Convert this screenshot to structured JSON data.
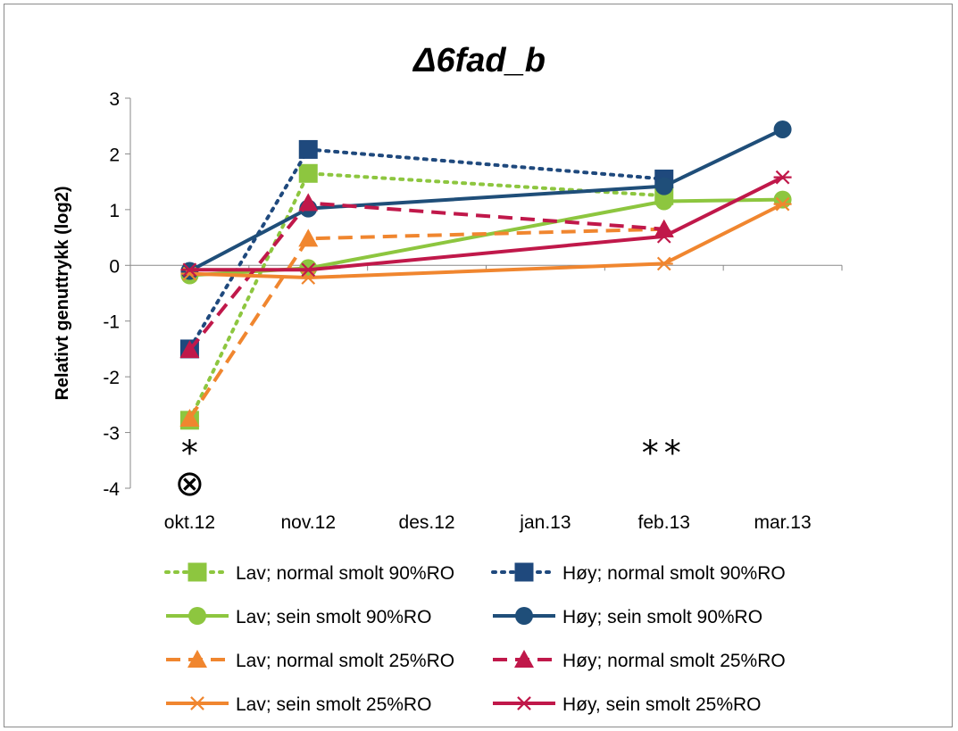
{
  "chart_data": {
    "type": "line",
    "title": "Δ6fad_b",
    "ylabel": "Relativt genuttrykk (log2)",
    "xlabel": "",
    "categories": [
      "okt.12",
      "nov.12",
      "des.12",
      "jan.13",
      "feb.13",
      "mar.13"
    ],
    "ylim": [
      -4,
      3
    ],
    "yticks": [
      3,
      2,
      1,
      0,
      -1,
      -2,
      -3,
      -4
    ],
    "grid": false,
    "legend_position": "bottom",
    "series": [
      {
        "name": "Lav; normal smolt 90%RO",
        "color": "#8DC63F",
        "dash": "dotted",
        "marker": "square",
        "points": [
          {
            "x": "okt.12",
            "y": -2.78
          },
          {
            "x": "nov.12",
            "y": 1.65
          },
          {
            "x": "feb.13",
            "y": 1.25
          }
        ]
      },
      {
        "name": "Høy; normal smolt 90%RO",
        "color": "#1F497D",
        "dash": "dotted",
        "marker": "square",
        "points": [
          {
            "x": "okt.12",
            "y": -1.5
          },
          {
            "x": "nov.12",
            "y": 2.08
          },
          {
            "x": "feb.13",
            "y": 1.55
          }
        ]
      },
      {
        "name": "Lav; sein smolt 90%RO",
        "color": "#8DC63F",
        "dash": "solid",
        "marker": "circle",
        "points": [
          {
            "x": "okt.12",
            "y": -0.18
          },
          {
            "x": "nov.12",
            "y": -0.05
          },
          {
            "x": "feb.13",
            "y": 1.15
          },
          {
            "x": "mar.13",
            "y": 1.18
          }
        ]
      },
      {
        "name": "Høy; sein smolt 90%RO",
        "color": "#1F4E79",
        "dash": "solid",
        "marker": "circle",
        "points": [
          {
            "x": "okt.12",
            "y": -0.1
          },
          {
            "x": "nov.12",
            "y": 1.02
          },
          {
            "x": "feb.13",
            "y": 1.42
          },
          {
            "x": "mar.13",
            "y": 2.44
          }
        ]
      },
      {
        "name": "Lav; normal smolt 25%RO",
        "color": "#F0862F",
        "dash": "dashed",
        "marker": "triangle",
        "points": [
          {
            "x": "okt.12",
            "y": -2.75
          },
          {
            "x": "nov.12",
            "y": 0.48
          },
          {
            "x": "feb.13",
            "y": 0.65
          }
        ]
      },
      {
        "name": "Høy; normal smolt 25%RO",
        "color": "#C0184A",
        "dash": "dashed",
        "marker": "triangle",
        "points": [
          {
            "x": "okt.12",
            "y": -1.52
          },
          {
            "x": "nov.12",
            "y": 1.12
          },
          {
            "x": "feb.13",
            "y": 0.65
          }
        ]
      },
      {
        "name": "Lav; sein smolt 25%RO",
        "color": "#F0862F",
        "dash": "solid",
        "marker": "star",
        "points": [
          {
            "x": "okt.12",
            "y": -0.15
          },
          {
            "x": "nov.12",
            "y": -0.22
          },
          {
            "x": "feb.13",
            "y": 0.03
          },
          {
            "x": "mar.13",
            "y": 1.1
          }
        ]
      },
      {
        "name": "Høy, sein smolt 25%RO",
        "color": "#C0184A",
        "dash": "solid",
        "marker": "star",
        "points": [
          {
            "x": "okt.12",
            "y": -0.08
          },
          {
            "x": "nov.12",
            "y": -0.08
          },
          {
            "x": "feb.13",
            "y": 0.52
          },
          {
            "x": "mar.13",
            "y": 1.58
          }
        ]
      }
    ],
    "annotations": [
      {
        "text": "*",
        "x": "okt.12",
        "y": -3.35
      },
      {
        "text": "⊗",
        "x": "okt.12",
        "y": -3.9
      },
      {
        "text": "**",
        "x": "feb.13",
        "y": -3.35
      }
    ]
  }
}
